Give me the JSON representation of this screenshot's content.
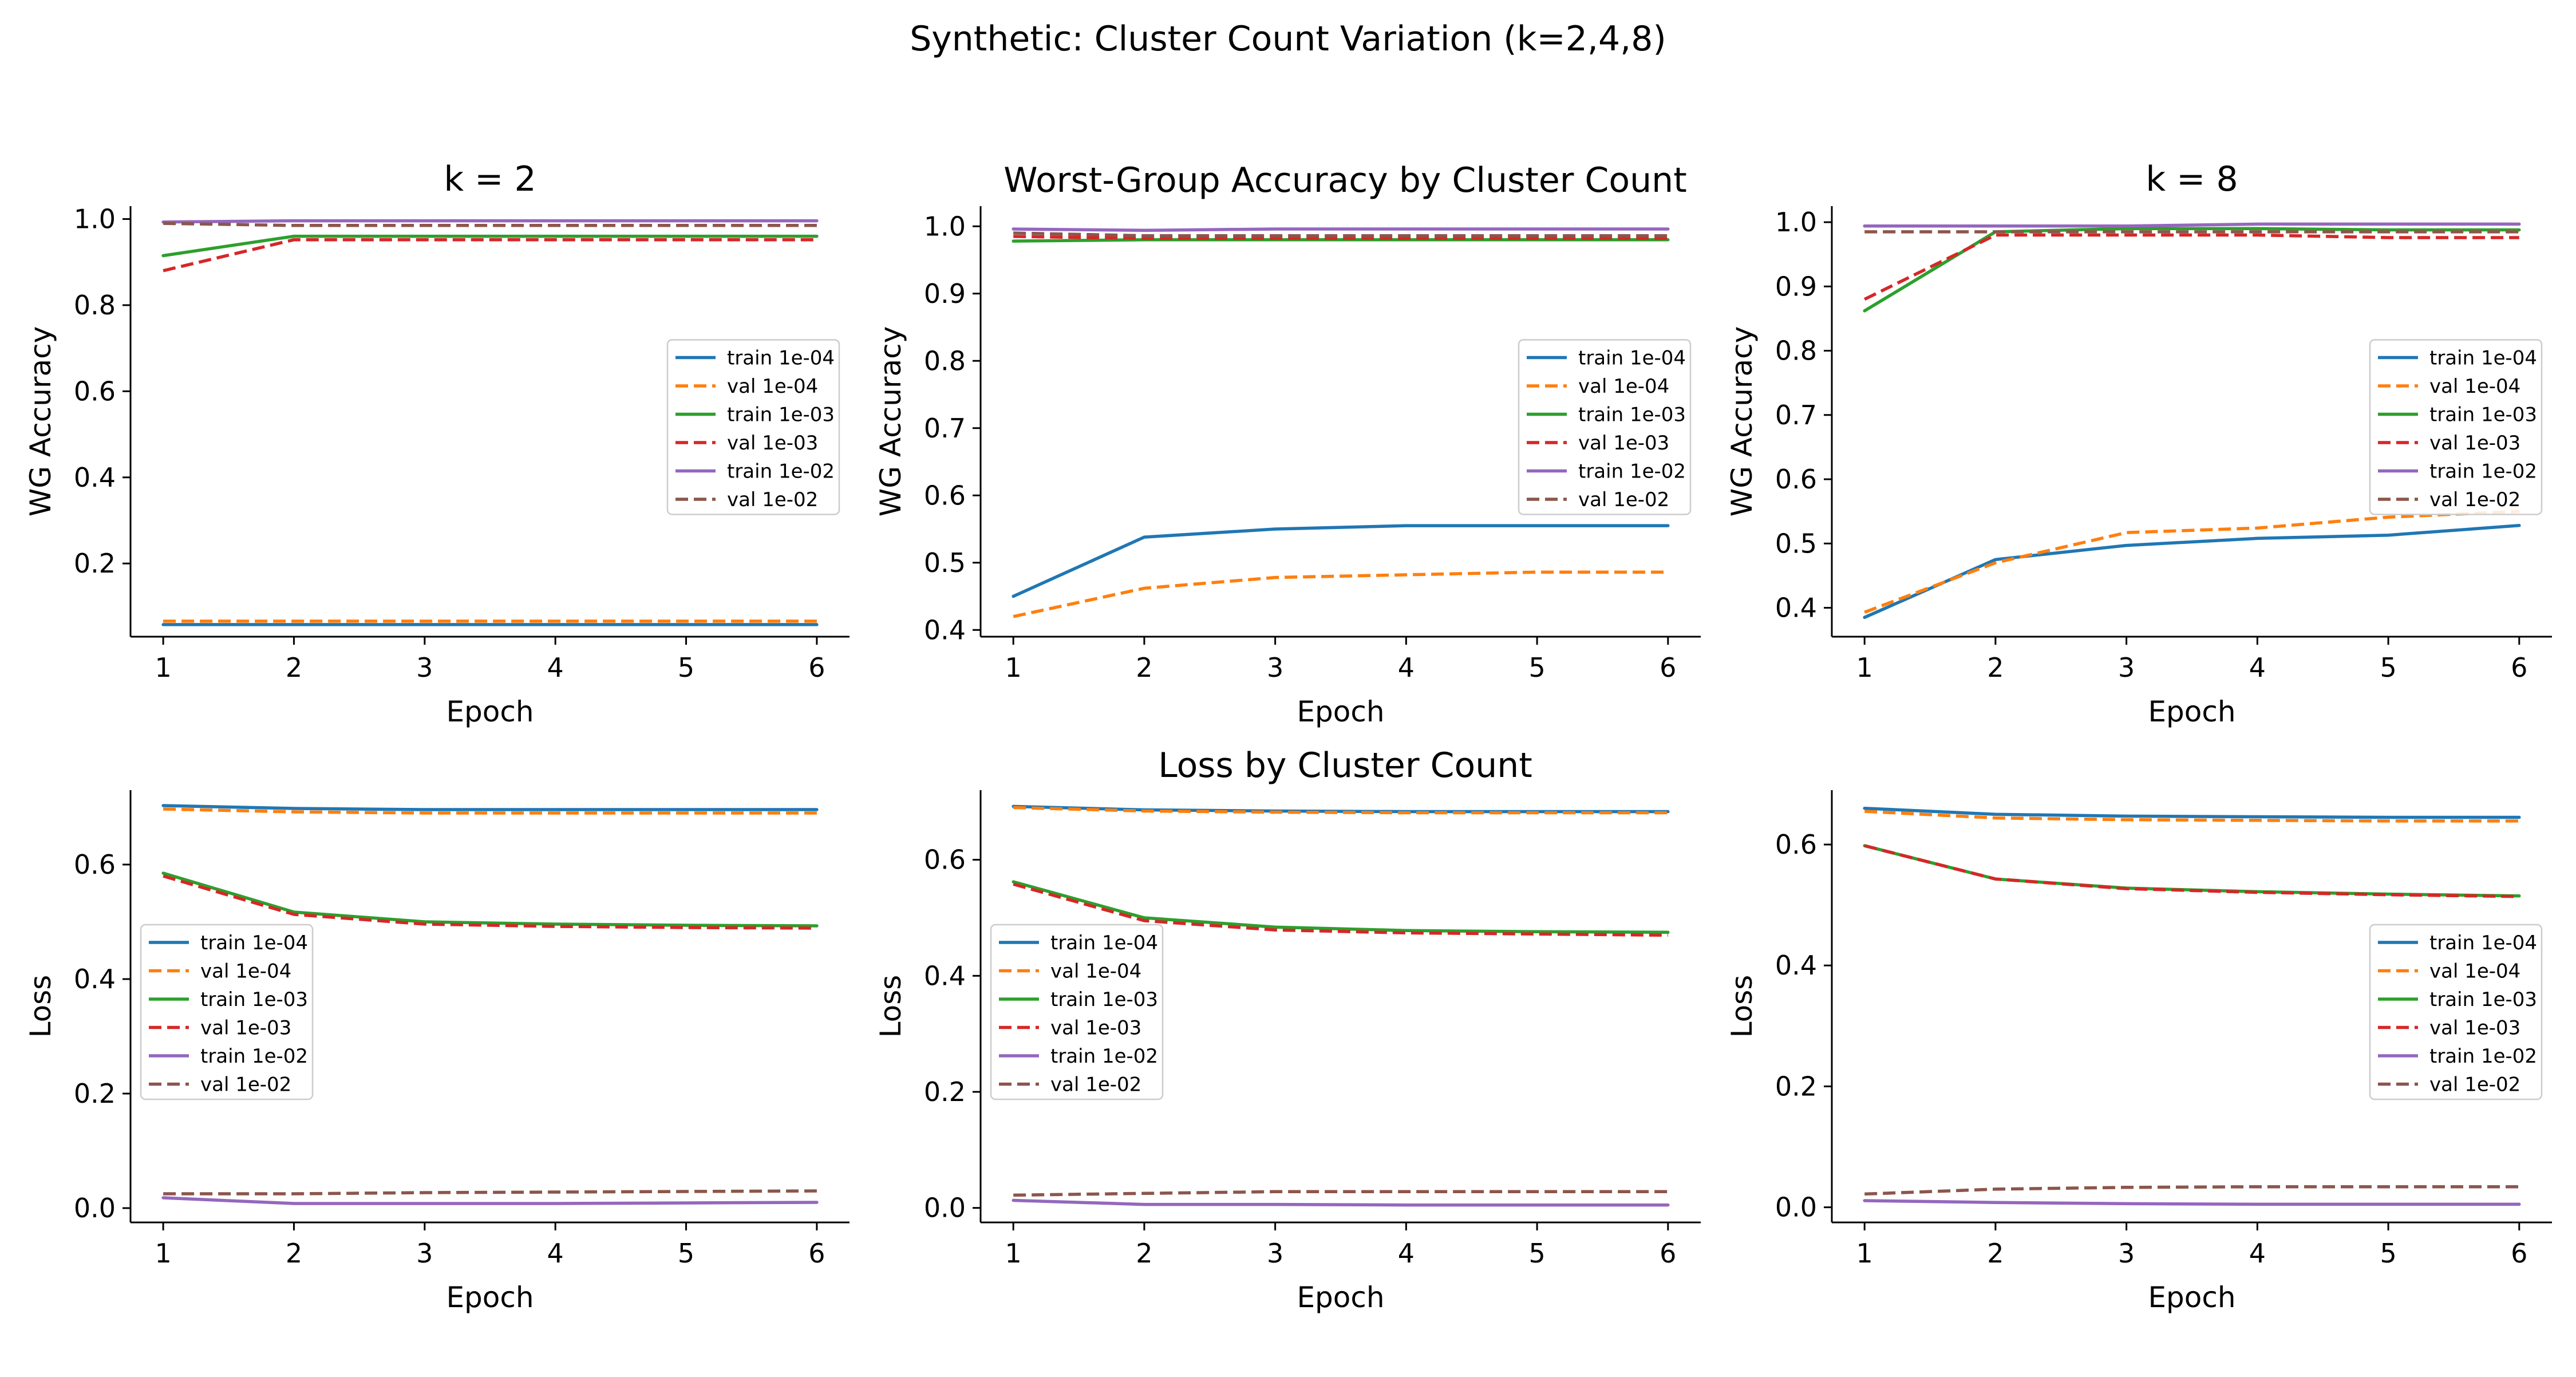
{
  "figure": {
    "suptitle": "Synthetic: Cluster Count Variation (k=2,4,8)",
    "row_titles": [
      "Worst-Group Accuracy by Cluster Count",
      "Loss by Cluster Count"
    ]
  },
  "chart_data": [
    {
      "type": "line",
      "title": "k = 2",
      "xlabel": "Epoch",
      "ylabel": "WG Accuracy",
      "x": [
        1,
        2,
        3,
        4,
        5,
        6
      ],
      "xlim": [
        0.75,
        6.25
      ],
      "ylim": [
        0.03,
        1.03
      ],
      "xticks": [
        1,
        2,
        3,
        4,
        5,
        6
      ],
      "yticks": [
        0.2,
        0.4,
        0.6,
        0.8,
        1.0
      ],
      "ytick_labels": [
        "0.2",
        "0.4",
        "0.6",
        "0.8",
        "1.0"
      ],
      "legend": "center-right",
      "series": [
        {
          "name": "train 1e-04",
          "color": "#1f77b4",
          "dash": "solid",
          "values": [
            0.058,
            0.058,
            0.058,
            0.058,
            0.058,
            0.058
          ]
        },
        {
          "name": "val 1e-04",
          "color": "#ff7f0e",
          "dash": "dashed",
          "values": [
            0.066,
            0.066,
            0.066,
            0.066,
            0.066,
            0.066
          ]
        },
        {
          "name": "train 1e-03",
          "color": "#2ca02c",
          "dash": "solid",
          "values": [
            0.915,
            0.96,
            0.96,
            0.96,
            0.96,
            0.96
          ]
        },
        {
          "name": "val 1e-03",
          "color": "#d62728",
          "dash": "dashed",
          "values": [
            0.88,
            0.952,
            0.952,
            0.952,
            0.952,
            0.952
          ]
        },
        {
          "name": "train 1e-02",
          "color": "#9467bd",
          "dash": "solid",
          "values": [
            0.993,
            0.996,
            0.996,
            0.996,
            0.996,
            0.996
          ]
        },
        {
          "name": "val 1e-02",
          "color": "#8c564b",
          "dash": "dashed",
          "values": [
            0.99,
            0.985,
            0.985,
            0.985,
            0.985,
            0.985
          ]
        }
      ]
    },
    {
      "type": "line",
      "title": "",
      "xlabel": "Epoch",
      "ylabel": "WG Accuracy",
      "x": [
        1,
        2,
        3,
        4,
        5,
        6
      ],
      "xlim": [
        0.75,
        6.25
      ],
      "ylim": [
        0.39,
        1.03
      ],
      "xticks": [
        1,
        2,
        3,
        4,
        5,
        6
      ],
      "yticks": [
        0.4,
        0.5,
        0.6,
        0.7,
        0.8,
        0.9,
        1.0
      ],
      "ytick_labels": [
        "0.4",
        "0.5",
        "0.6",
        "0.7",
        "0.8",
        "0.9",
        "1.0"
      ],
      "legend": "center-right",
      "series": [
        {
          "name": "train 1e-04",
          "color": "#1f77b4",
          "dash": "solid",
          "values": [
            0.45,
            0.538,
            0.55,
            0.555,
            0.555,
            0.555
          ]
        },
        {
          "name": "val 1e-04",
          "color": "#ff7f0e",
          "dash": "dashed",
          "values": [
            0.42,
            0.462,
            0.478,
            0.482,
            0.486,
            0.486
          ]
        },
        {
          "name": "train 1e-03",
          "color": "#2ca02c",
          "dash": "solid",
          "values": [
            0.978,
            0.98,
            0.98,
            0.98,
            0.98,
            0.98
          ]
        },
        {
          "name": "val 1e-03",
          "color": "#d62728",
          "dash": "dashed",
          "values": [
            0.985,
            0.982,
            0.982,
            0.982,
            0.982,
            0.982
          ]
        },
        {
          "name": "train 1e-02",
          "color": "#9467bd",
          "dash": "solid",
          "values": [
            0.996,
            0.994,
            0.996,
            0.996,
            0.996,
            0.996
          ]
        },
        {
          "name": "val 1e-02",
          "color": "#8c564b",
          "dash": "dashed",
          "values": [
            0.99,
            0.986,
            0.986,
            0.986,
            0.986,
            0.986
          ]
        }
      ]
    },
    {
      "type": "line",
      "title": "k = 8",
      "xlabel": "Epoch",
      "ylabel": "WG Accuracy",
      "x": [
        1,
        2,
        3,
        4,
        5,
        6
      ],
      "xlim": [
        0.75,
        6.25
      ],
      "ylim": [
        0.355,
        1.025
      ],
      "xticks": [
        1,
        2,
        3,
        4,
        5,
        6
      ],
      "yticks": [
        0.4,
        0.5,
        0.6,
        0.7,
        0.8,
        0.9,
        1.0
      ],
      "ytick_labels": [
        "0.4",
        "0.5",
        "0.6",
        "0.7",
        "0.8",
        "0.9",
        "1.0"
      ],
      "legend": "center-right",
      "series": [
        {
          "name": "train 1e-04",
          "color": "#1f77b4",
          "dash": "solid",
          "values": [
            0.385,
            0.475,
            0.497,
            0.508,
            0.513,
            0.528
          ]
        },
        {
          "name": "val 1e-04",
          "color": "#ff7f0e",
          "dash": "dashed",
          "values": [
            0.393,
            0.47,
            0.517,
            0.524,
            0.541,
            0.55
          ]
        },
        {
          "name": "train 1e-03",
          "color": "#2ca02c",
          "dash": "solid",
          "values": [
            0.862,
            0.985,
            0.99,
            0.99,
            0.988,
            0.988
          ]
        },
        {
          "name": "val 1e-03",
          "color": "#d62728",
          "dash": "dashed",
          "values": [
            0.88,
            0.98,
            0.98,
            0.98,
            0.976,
            0.976
          ]
        },
        {
          "name": "train 1e-02",
          "color": "#9467bd",
          "dash": "solid",
          "values": [
            0.994,
            0.994,
            0.994,
            0.997,
            0.997,
            0.997
          ]
        },
        {
          "name": "val 1e-02",
          "color": "#8c564b",
          "dash": "dashed",
          "values": [
            0.985,
            0.985,
            0.985,
            0.985,
            0.985,
            0.985
          ]
        }
      ]
    },
    {
      "type": "line",
      "title": "",
      "xlabel": "Epoch",
      "ylabel": "Loss",
      "x": [
        1,
        2,
        3,
        4,
        5,
        6
      ],
      "xlim": [
        0.75,
        6.25
      ],
      "ylim": [
        -0.025,
        0.73
      ],
      "xticks": [
        1,
        2,
        3,
        4,
        5,
        6
      ],
      "yticks": [
        0.0,
        0.2,
        0.4,
        0.6
      ],
      "ytick_labels": [
        "0.0",
        "0.2",
        "0.4",
        "0.6"
      ],
      "legend": "center-left",
      "series": [
        {
          "name": "train 1e-04",
          "color": "#1f77b4",
          "dash": "solid",
          "values": [
            0.703,
            0.698,
            0.696,
            0.696,
            0.696,
            0.696
          ]
        },
        {
          "name": "val 1e-04",
          "color": "#ff7f0e",
          "dash": "dashed",
          "values": [
            0.697,
            0.692,
            0.69,
            0.69,
            0.69,
            0.69
          ]
        },
        {
          "name": "train 1e-03",
          "color": "#2ca02c",
          "dash": "solid",
          "values": [
            0.585,
            0.517,
            0.5,
            0.496,
            0.494,
            0.493
          ]
        },
        {
          "name": "val 1e-03",
          "color": "#d62728",
          "dash": "dashed",
          "values": [
            0.58,
            0.513,
            0.496,
            0.492,
            0.49,
            0.489
          ]
        },
        {
          "name": "train 1e-02",
          "color": "#9467bd",
          "dash": "solid",
          "values": [
            0.018,
            0.008,
            0.008,
            0.008,
            0.009,
            0.01
          ]
        },
        {
          "name": "val 1e-02",
          "color": "#8c564b",
          "dash": "dashed",
          "values": [
            0.025,
            0.025,
            0.027,
            0.028,
            0.029,
            0.03
          ]
        }
      ]
    },
    {
      "type": "line",
      "title": "",
      "xlabel": "Epoch",
      "ylabel": "Loss",
      "x": [
        1,
        2,
        3,
        4,
        5,
        6
      ],
      "xlim": [
        0.75,
        6.25
      ],
      "ylim": [
        -0.025,
        0.72
      ],
      "xticks": [
        1,
        2,
        3,
        4,
        5,
        6
      ],
      "yticks": [
        0.0,
        0.2,
        0.4,
        0.6
      ],
      "ytick_labels": [
        "0.0",
        "0.2",
        "0.4",
        "0.6"
      ],
      "legend": "center-left",
      "series": [
        {
          "name": "train 1e-04",
          "color": "#1f77b4",
          "dash": "solid",
          "values": [
            0.692,
            0.686,
            0.684,
            0.683,
            0.683,
            0.683
          ]
        },
        {
          "name": "val 1e-04",
          "color": "#ff7f0e",
          "dash": "dashed",
          "values": [
            0.69,
            0.684,
            0.682,
            0.681,
            0.681,
            0.681
          ]
        },
        {
          "name": "train 1e-03",
          "color": "#2ca02c",
          "dash": "solid",
          "values": [
            0.562,
            0.5,
            0.484,
            0.478,
            0.476,
            0.475
          ]
        },
        {
          "name": "val 1e-03",
          "color": "#d62728",
          "dash": "dashed",
          "values": [
            0.558,
            0.495,
            0.479,
            0.474,
            0.472,
            0.47
          ]
        },
        {
          "name": "train 1e-02",
          "color": "#9467bd",
          "dash": "solid",
          "values": [
            0.013,
            0.006,
            0.006,
            0.005,
            0.005,
            0.005
          ]
        },
        {
          "name": "val 1e-02",
          "color": "#8c564b",
          "dash": "dashed",
          "values": [
            0.022,
            0.025,
            0.028,
            0.028,
            0.028,
            0.028
          ]
        }
      ]
    },
    {
      "type": "line",
      "title": "",
      "xlabel": "Epoch",
      "ylabel": "Loss",
      "x": [
        1,
        2,
        3,
        4,
        5,
        6
      ],
      "xlim": [
        0.75,
        6.25
      ],
      "ylim": [
        -0.025,
        0.69
      ],
      "xticks": [
        1,
        2,
        3,
        4,
        5,
        6
      ],
      "yticks": [
        0.0,
        0.2,
        0.4,
        0.6
      ],
      "ytick_labels": [
        "0.0",
        "0.2",
        "0.4",
        "0.6"
      ],
      "legend": "center-right",
      "series": [
        {
          "name": "train 1e-04",
          "color": "#1f77b4",
          "dash": "solid",
          "values": [
            0.66,
            0.65,
            0.647,
            0.646,
            0.645,
            0.645
          ]
        },
        {
          "name": "val 1e-04",
          "color": "#ff7f0e",
          "dash": "dashed",
          "values": [
            0.655,
            0.644,
            0.641,
            0.64,
            0.639,
            0.639
          ]
        },
        {
          "name": "train 1e-03",
          "color": "#2ca02c",
          "dash": "solid",
          "values": [
            0.598,
            0.543,
            0.528,
            0.522,
            0.518,
            0.515
          ]
        },
        {
          "name": "val 1e-03",
          "color": "#d62728",
          "dash": "dashed",
          "values": [
            0.598,
            0.543,
            0.527,
            0.521,
            0.517,
            0.514
          ]
        },
        {
          "name": "train 1e-02",
          "color": "#9467bd",
          "dash": "solid",
          "values": [
            0.011,
            0.008,
            0.006,
            0.005,
            0.005,
            0.005
          ]
        },
        {
          "name": "val 1e-02",
          "color": "#8c564b",
          "dash": "dashed",
          "values": [
            0.022,
            0.03,
            0.033,
            0.034,
            0.034,
            0.034
          ]
        }
      ]
    }
  ]
}
